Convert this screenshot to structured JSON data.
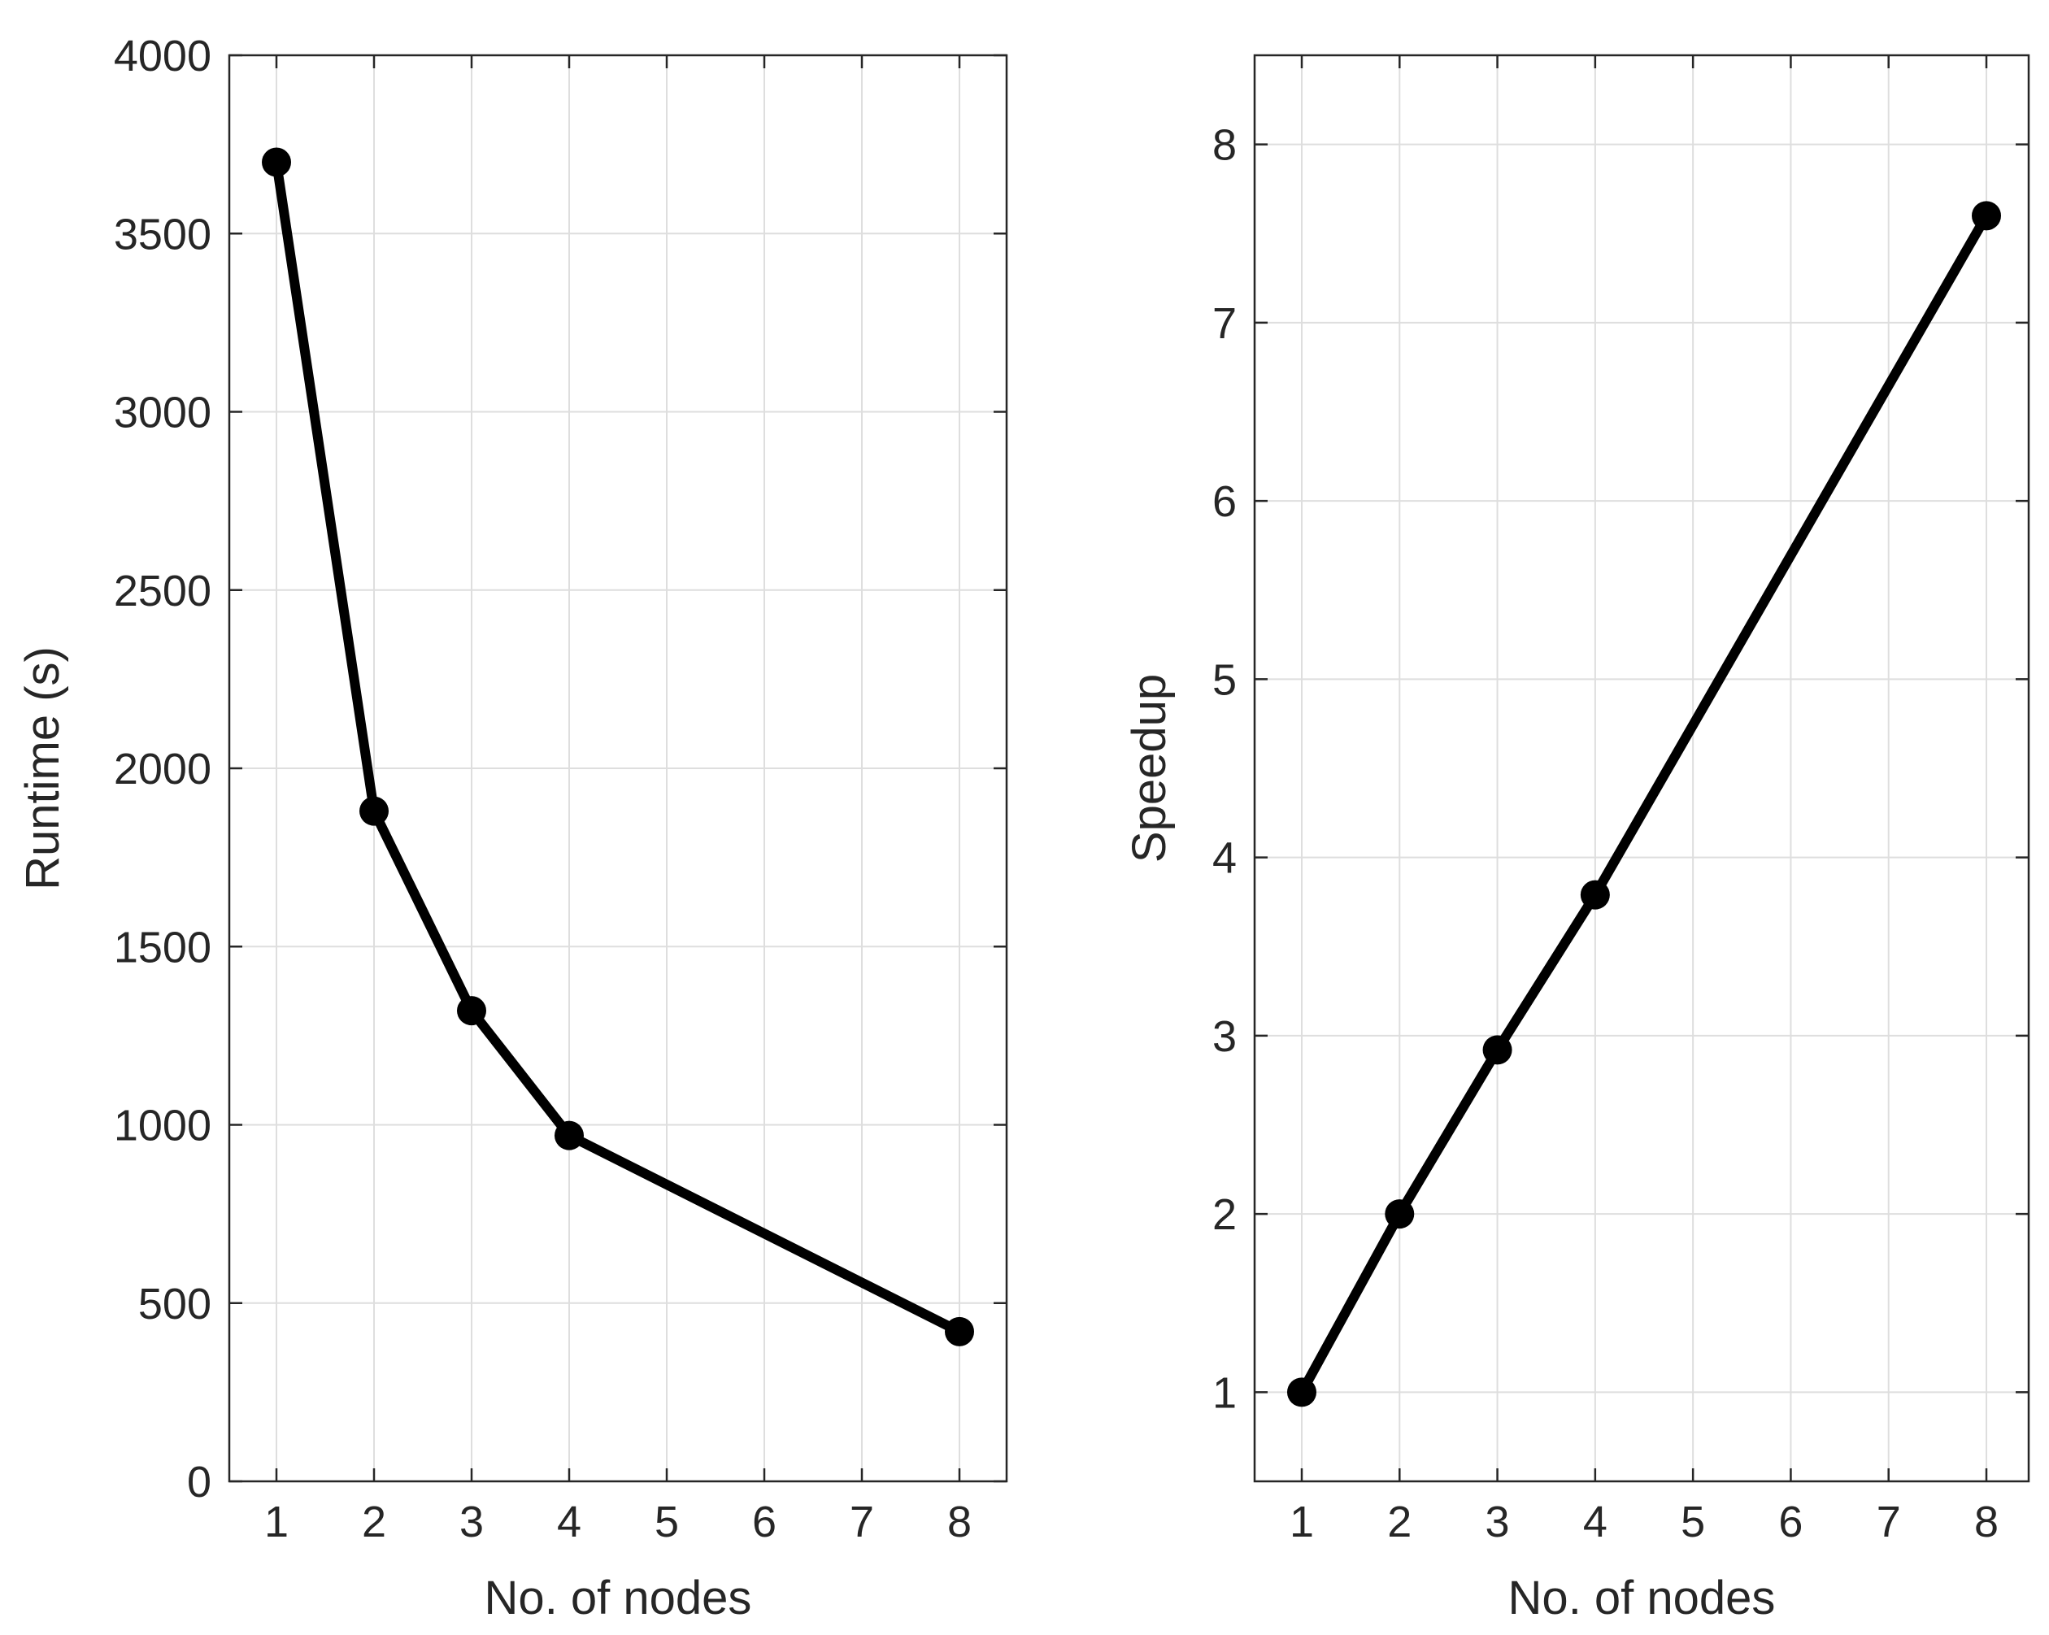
{
  "chart_data": [
    {
      "type": "line",
      "xlabel": "No. of nodes",
      "ylabel": "Runtime (s)",
      "x_tick_labels": [
        "1",
        "2",
        "3",
        "4",
        "5",
        "6",
        "7",
        "8"
      ],
      "y_tick_labels": [
        "0",
        "500",
        "1000",
        "1500",
        "2000",
        "2500",
        "3000",
        "3500",
        "4000"
      ],
      "ylim": [
        0,
        4000
      ],
      "grid": true,
      "series": [
        {
          "x_labels": [
            "1",
            "2",
            "3",
            "4",
            "8"
          ],
          "values": [
            3700,
            1880,
            1320,
            970,
            420
          ]
        }
      ]
    },
    {
      "type": "line",
      "xlabel": "No. of nodes",
      "ylabel": "Speedup",
      "x_tick_labels": [
        "1",
        "2",
        "3",
        "4",
        "5",
        "6",
        "7",
        "8"
      ],
      "y_tick_labels": [
        "1",
        "2",
        "3",
        "4",
        "5",
        "6",
        "7",
        "8"
      ],
      "ylim": [
        0.5,
        8.5
      ],
      "grid": true,
      "series": [
        {
          "x_labels": [
            "1",
            "2",
            "3",
            "4",
            "8"
          ],
          "values": [
            1,
            2,
            2.92,
            3.79,
            7.6
          ]
        }
      ]
    }
  ],
  "colors": {
    "line": "#000000",
    "axis": "#262626",
    "grid": "#dedede"
  }
}
